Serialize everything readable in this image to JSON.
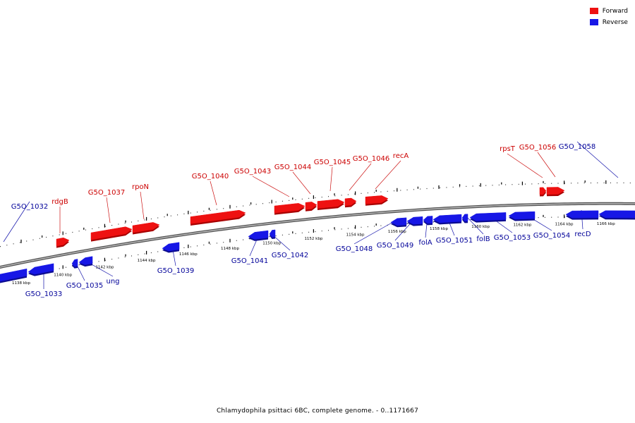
{
  "title": "Chlamydophila psittaci 6BC, complete genome. - 0..1171667",
  "colors": {
    "forward": "#ee1111",
    "reverse": "#1717e6",
    "forward_label": "#cc0000",
    "reverse_label": "#000099",
    "backbone": "#777777"
  },
  "legend": [
    {
      "label": "Forward",
      "strand": "forward"
    },
    {
      "label": "Reverse",
      "strand": "reverse"
    }
  ],
  "scale_labels": [
    {
      "kbp": 1138,
      "label": "1138 kbp"
    },
    {
      "kbp": 1140,
      "label": "1140 kbp"
    },
    {
      "kbp": 1142,
      "label": "1142 kbp"
    },
    {
      "kbp": 1144,
      "label": "1144 kbp"
    },
    {
      "kbp": 1146,
      "label": "1146 kbp"
    },
    {
      "kbp": 1148,
      "label": "1148 kbp"
    },
    {
      "kbp": 1150,
      "label": "1150 kbp"
    },
    {
      "kbp": 1152,
      "label": "1152 kbp"
    },
    {
      "kbp": 1154,
      "label": "1154 kbp"
    },
    {
      "kbp": 1156,
      "label": "1156 kbp"
    },
    {
      "kbp": 1158,
      "label": "1158 kbp"
    },
    {
      "kbp": 1160,
      "label": "1160 kbp"
    },
    {
      "kbp": 1162,
      "label": "1162 kbp"
    },
    {
      "kbp": 1164,
      "label": "1164 kbp"
    },
    {
      "kbp": 1166,
      "label": "1166 kbp"
    }
  ],
  "genes": [
    {
      "name": "G5O_1032",
      "strand": "reverse"
    },
    {
      "name": "G5O_1033",
      "strand": "reverse"
    },
    {
      "name": "rdgB",
      "strand": "forward"
    },
    {
      "name": "G5O_1035",
      "strand": "reverse"
    },
    {
      "name": "ung",
      "strand": "reverse"
    },
    {
      "name": "G5O_1037",
      "strand": "forward"
    },
    {
      "name": "rpoN",
      "strand": "forward"
    },
    {
      "name": "G5O_1039",
      "strand": "reverse"
    },
    {
      "name": "G5O_1040",
      "strand": "forward"
    },
    {
      "name": "G5O_1041",
      "strand": "reverse"
    },
    {
      "name": "G5O_1042",
      "strand": "reverse"
    },
    {
      "name": "G5O_1043",
      "strand": "forward"
    },
    {
      "name": "G5O_1044",
      "strand": "forward"
    },
    {
      "name": "G5O_1045",
      "strand": "forward"
    },
    {
      "name": "G5O_1046",
      "strand": "forward"
    },
    {
      "name": "recA",
      "strand": "forward"
    },
    {
      "name": "G5O_1048",
      "strand": "reverse"
    },
    {
      "name": "G5O_1049",
      "strand": "reverse"
    },
    {
      "name": "folA",
      "strand": "reverse"
    },
    {
      "name": "G5O_1051",
      "strand": "reverse"
    },
    {
      "name": "folB",
      "strand": "reverse"
    },
    {
      "name": "G5O_1053",
      "strand": "reverse"
    },
    {
      "name": "G5O_1054",
      "strand": "reverse"
    },
    {
      "name": "rpsT",
      "strand": "forward"
    },
    {
      "name": "G5O_1056",
      "strand": "forward"
    },
    {
      "name": "G5O_1058",
      "strand": "reverse"
    },
    {
      "name": "recD",
      "strand": "reverse"
    }
  ]
}
